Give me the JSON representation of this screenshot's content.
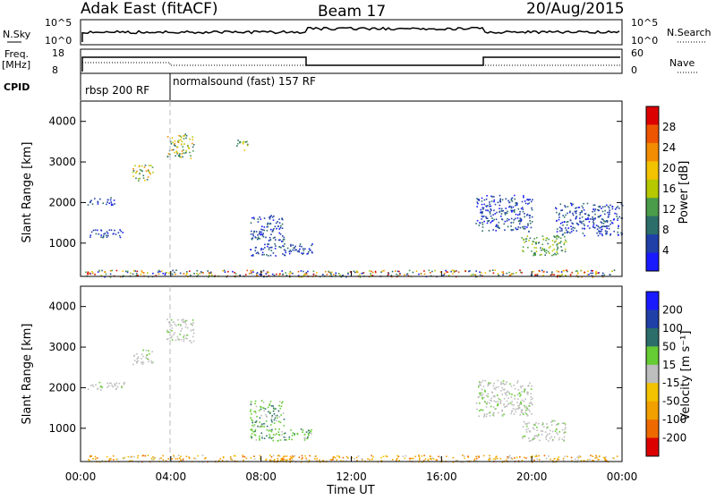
{
  "header": {
    "station": "Adak East (fitACF)",
    "beam": "Beam 17",
    "date": "20/Aug/2015"
  },
  "strip_labels": {
    "nsky": "N.Sky",
    "freq": "Freq.",
    "mhz": "[MHz]",
    "cpid": "CPID",
    "nsearch": "N.Search",
    "nave": "Nave",
    "nsky_top": "10^5",
    "nsky_bottom": "10^0",
    "nsearch_top": "10^5",
    "nsearch_bottom": "10^0",
    "freq_top": "18",
    "freq_bottom": "8",
    "nave_top": "60",
    "nave_bottom": "0"
  },
  "cpid_segments": [
    {
      "label": "rbsp 200 RF"
    },
    {
      "label": "normalsound (fast) 157 RF"
    }
  ],
  "colors": {
    "power": [
      "#1a1aff",
      "#2040a8",
      "#2c6e6a",
      "#4a9c4a",
      "#b5c800",
      "#f2c200",
      "#f28c00",
      "#ee5500",
      "#dd0000"
    ],
    "velocity": [
      "#1a1aff",
      "#2040a8",
      "#2c6e6a",
      "#66cc33",
      "#bdbdbd",
      "#f2c200",
      "#f2a000",
      "#ee6a00",
      "#dd0000"
    ]
  },
  "chart_data": [
    {
      "type": "heatmap",
      "ylabel": "Slant Range [km]",
      "xlabel": "Time UT",
      "x_ticks": [
        "00:00",
        "04:00",
        "08:00",
        "12:00",
        "16:00",
        "20:00",
        "00:00"
      ],
      "y_ticks": [
        "1000",
        "2000",
        "3000",
        "4000"
      ],
      "ylim": [
        180,
        4500
      ],
      "xlim_hours": [
        0,
        24
      ],
      "colorbar": {
        "label": "Power [dB]",
        "ticks": [
          "4",
          "8",
          "12",
          "16",
          "20",
          "24",
          "28"
        ],
        "range": [
          0,
          32
        ]
      },
      "regions": [
        {
          "t": [
            0.2,
            23.8
          ],
          "r": [
            180,
            350
          ],
          "dominant": "mixed"
        },
        {
          "t": [
            0.3,
            2.0
          ],
          "r": [
            1150,
            1350
          ],
          "dominant": "blue"
        },
        {
          "t": [
            0.3,
            1.5
          ],
          "r": [
            1950,
            2150
          ],
          "dominant": "blue"
        },
        {
          "t": [
            2.3,
            3.2
          ],
          "r": [
            2550,
            2950
          ],
          "dominant": "green-yellow"
        },
        {
          "t": [
            3.8,
            5.0
          ],
          "r": [
            3100,
            3700
          ],
          "dominant": "green-yellow"
        },
        {
          "t": [
            6.9,
            7.5
          ],
          "r": [
            3300,
            3550
          ],
          "dominant": "green-yellow"
        },
        {
          "t": [
            7.5,
            10.3
          ],
          "r": [
            700,
            1000
          ],
          "dominant": "blue"
        },
        {
          "t": [
            7.5,
            9.0
          ],
          "r": [
            1050,
            1700
          ],
          "dominant": "blue"
        },
        {
          "t": [
            17.5,
            20.0
          ],
          "r": [
            1300,
            2200
          ],
          "dominant": "blue"
        },
        {
          "t": [
            19.5,
            21.5
          ],
          "r": [
            700,
            1200
          ],
          "dominant": "green"
        },
        {
          "t": [
            21.0,
            24.0
          ],
          "r": [
            1200,
            2000
          ],
          "dominant": "blue"
        }
      ]
    },
    {
      "type": "heatmap",
      "ylabel": "Slant Range [km]",
      "xlabel": "Time UT",
      "x_ticks": [
        "00:00",
        "04:00",
        "08:00",
        "12:00",
        "16:00",
        "20:00",
        "00:00"
      ],
      "y_ticks": [
        "1000",
        "2000",
        "3000",
        "4000"
      ],
      "ylim": [
        180,
        4500
      ],
      "xlim_hours": [
        0,
        24
      ],
      "colorbar": {
        "label": "Velocity [m s⁻¹]",
        "ticks": [
          "200",
          "100",
          "50",
          "15",
          "-15",
          "-50",
          "-100",
          "-200"
        ],
        "range": [
          -250,
          250
        ]
      },
      "regions": [
        {
          "t": [
            0.2,
            23.8
          ],
          "r": [
            180,
            350
          ],
          "dominant": "orange"
        },
        {
          "t": [
            0.3,
            2.0
          ],
          "r": [
            1950,
            2150
          ],
          "dominant": "grey"
        },
        {
          "t": [
            2.3,
            3.2
          ],
          "r": [
            2550,
            2950
          ],
          "dominant": "grey"
        },
        {
          "t": [
            3.8,
            5.0
          ],
          "r": [
            3100,
            3700
          ],
          "dominant": "grey"
        },
        {
          "t": [
            7.5,
            10.3
          ],
          "r": [
            700,
            1000
          ],
          "dominant": "green"
        },
        {
          "t": [
            7.5,
            9.0
          ],
          "r": [
            1050,
            1700
          ],
          "dominant": "green"
        },
        {
          "t": [
            17.5,
            20.0
          ],
          "r": [
            1300,
            2200
          ],
          "dominant": "grey"
        },
        {
          "t": [
            19.5,
            21.5
          ],
          "r": [
            700,
            1200
          ],
          "dominant": "grey"
        }
      ]
    }
  ]
}
